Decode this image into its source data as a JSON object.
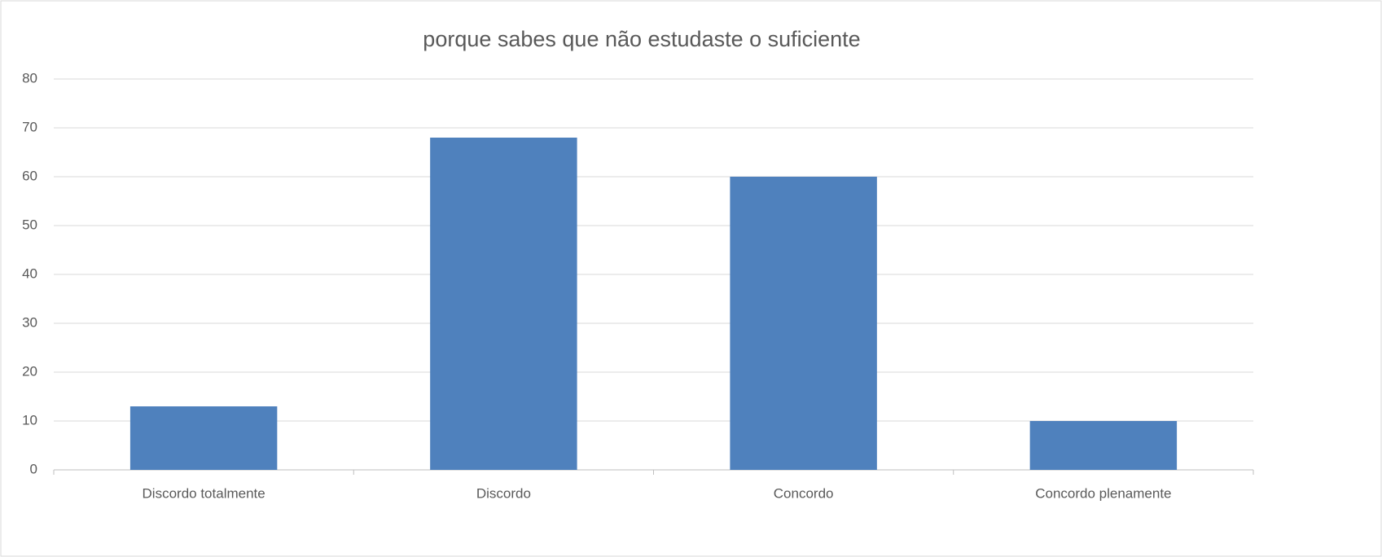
{
  "chart_data": {
    "type": "bar",
    "title": "porque sabes que não estudaste o suficiente",
    "categories": [
      "Discordo totalmente",
      "Discordo",
      "Concordo",
      "Concordo plenamente"
    ],
    "values": [
      13,
      68,
      60,
      10
    ],
    "color": "#4f81bd",
    "ylim": [
      0,
      80
    ],
    "yticks": [
      0,
      10,
      20,
      30,
      40,
      50,
      60,
      70,
      80
    ],
    "grid": true
  }
}
